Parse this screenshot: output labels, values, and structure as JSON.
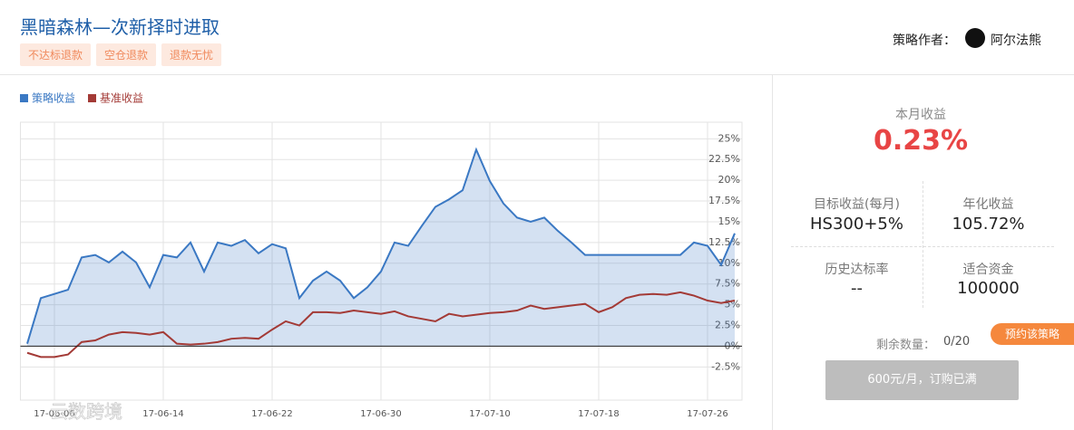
{
  "header": {
    "title": "黑暗森林—次新择时进取",
    "tags": [
      "不达标退款",
      "空仓退款",
      "退款无忧"
    ],
    "author_label": "策略作者：",
    "author_name": "阿尔法熊"
  },
  "chart_data": {
    "type": "line",
    "categories": [
      null,
      null,
      "17-06-06",
      null,
      null,
      null,
      null,
      null,
      null,
      null,
      "17-06-14",
      null,
      null,
      null,
      null,
      null,
      null,
      null,
      "17-06-22",
      null,
      null,
      null,
      null,
      null,
      null,
      null,
      "17-06-30",
      null,
      null,
      null,
      null,
      null,
      null,
      null,
      "17-07-10",
      null,
      null,
      null,
      null,
      null,
      null,
      null,
      "17-07-18",
      null,
      null,
      null,
      null,
      null,
      null,
      null,
      "17-07-26",
      null,
      null
    ],
    "series": [
      {
        "name": "策略收益",
        "color": "#3a78c3",
        "fill": true,
        "values": [
          0.3,
          5.8,
          6.3,
          6.8,
          10.7,
          11,
          10.1,
          11.4,
          10.1,
          7.1,
          11,
          10.7,
          12.5,
          9,
          12.5,
          12.1,
          12.8,
          11.2,
          12.3,
          11.8,
          5.8,
          7.9,
          9,
          7.9,
          5.8,
          7.1,
          9,
          12.5,
          12.1,
          14.5,
          16.8,
          17.7,
          18.8,
          23.7,
          19.9,
          17.2,
          15.5,
          15,
          15.5,
          13.9,
          12.5,
          11,
          11,
          11,
          11,
          11,
          11,
          11,
          11,
          12.5,
          12.1,
          9.8,
          13.6
        ]
      },
      {
        "name": "基准收益",
        "color": "#a33a36",
        "fill": false,
        "values": [
          -0.8,
          -1.3,
          -1.3,
          -1,
          0.5,
          0.7,
          1.4,
          1.7,
          1.6,
          1.4,
          1.7,
          0.3,
          0.2,
          0.3,
          0.5,
          0.9,
          1,
          0.9,
          2,
          3,
          2.5,
          4.1,
          4.1,
          4,
          4.3,
          4.1,
          3.9,
          4.2,
          3.6,
          3.3,
          3,
          3.9,
          3.6,
          3.8,
          4,
          4.1,
          4.3,
          4.9,
          4.5,
          4.7,
          4.9,
          5.1,
          4.1,
          4.7,
          5.8,
          6.2,
          6.3,
          6.2,
          6.5,
          6.1,
          5.5,
          5.2,
          5.5
        ]
      }
    ],
    "ylim": [
      -6.5,
      27
    ],
    "yticks": [
      {
        "value": 25,
        "label": "25%"
      },
      {
        "value": 22.5,
        "label": "22.5%"
      },
      {
        "value": 20,
        "label": "20%"
      },
      {
        "value": 17.5,
        "label": "17.5%"
      },
      {
        "value": 15,
        "label": "15%"
      },
      {
        "value": 12.5,
        "label": "12.5%"
      },
      {
        "value": 10,
        "label": "10%"
      },
      {
        "value": 7.5,
        "label": "7.5%"
      },
      {
        "value": 5,
        "label": "5%"
      },
      {
        "value": 2.5,
        "label": "2.5%"
      },
      {
        "value": 0,
        "label": "0%"
      },
      {
        "value": -2.5,
        "label": "-2.5%"
      }
    ],
    "grid": true,
    "legend": "top-left",
    "watermark": "云数跨境"
  },
  "panel": {
    "month_label": "本月收益",
    "month_value": "0.23%",
    "stats": [
      {
        "label": "目标收益(每月)",
        "value": "HS300+5%"
      },
      {
        "label": "年化收益",
        "value": "105.72%"
      },
      {
        "label": "历史达标率",
        "value": "--"
      },
      {
        "label": "适合资金",
        "value": "100000"
      }
    ],
    "remain_label": "剩余数量：",
    "remain_value": "0/20",
    "reserve": "预约该策略",
    "button": "600元/月，订购已满"
  }
}
